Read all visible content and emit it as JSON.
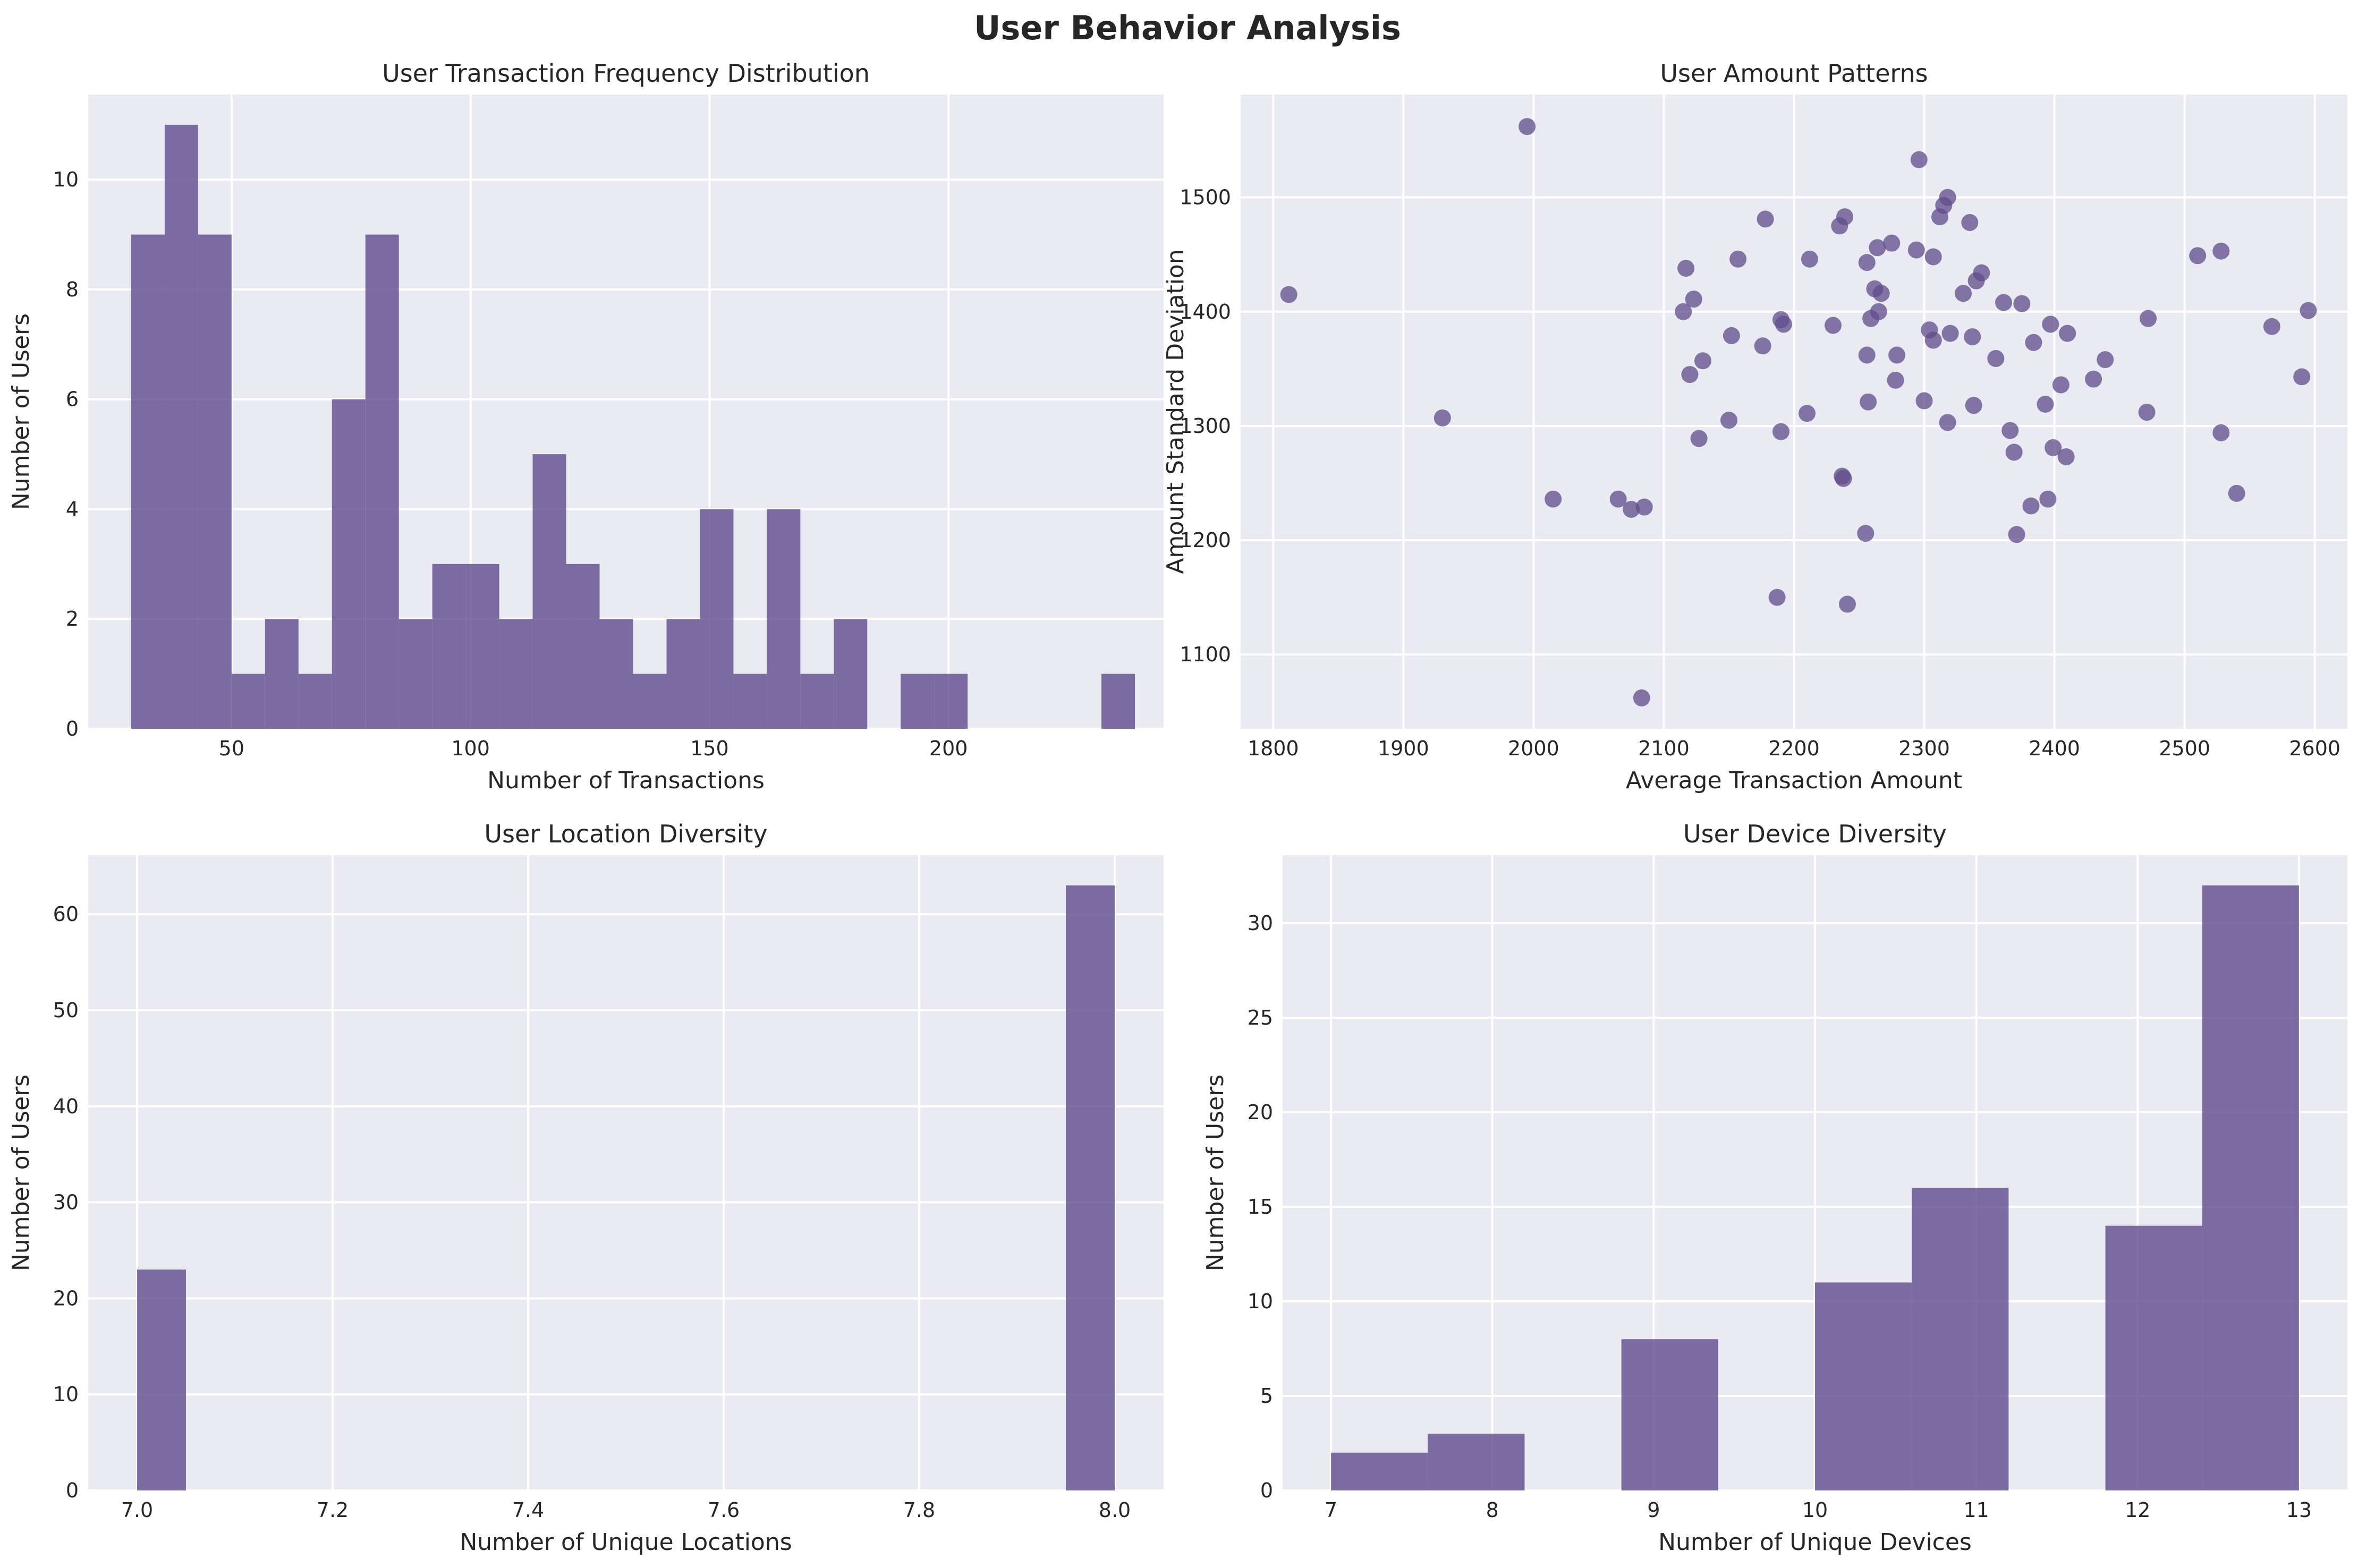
{
  "figure": {
    "title": "User Behavior Analysis",
    "bar_color": "#5f4b8b",
    "bar_opacity": 0.8,
    "plot_bg": "#eaeaf2"
  },
  "chart_data": [
    {
      "type": "bar",
      "title": "User Transaction Frequency Distribution",
      "xlabel": "Number of Transactions",
      "ylabel": "Number of Users",
      "xlim": [
        20,
        245
      ],
      "ylim": [
        0,
        11.55
      ],
      "xticks": [
        50,
        100,
        150,
        200
      ],
      "yticks": [
        0,
        2,
        4,
        6,
        8,
        10
      ],
      "bin_edges": [
        29,
        36,
        43,
        50,
        57,
        64,
        71,
        78,
        85,
        92,
        99,
        106,
        113,
        120,
        127,
        134,
        141,
        148,
        155,
        162,
        169,
        176,
        183,
        190,
        197,
        204,
        211,
        218,
        225,
        232,
        239
      ],
      "values": [
        9,
        11,
        9,
        1,
        2,
        1,
        6,
        9,
        2,
        3,
        3,
        2,
        5,
        3,
        2,
        1,
        2,
        4,
        1,
        4,
        1,
        2,
        0,
        1,
        1,
        0,
        0,
        0,
        0,
        1
      ]
    },
    {
      "type": "scatter",
      "title": "User Amount Patterns",
      "xlabel": "Average Transaction Amount",
      "ylabel": "Amount Standard Deviation",
      "xlim": [
        1775,
        2625
      ],
      "ylim": [
        1035,
        1590
      ],
      "xticks": [
        1800,
        1900,
        2000,
        2100,
        2200,
        2300,
        2400,
        2500,
        2600
      ],
      "yticks": [
        1100,
        1200,
        1300,
        1400,
        1500
      ],
      "points": [
        [
          1812,
          1415
        ],
        [
          1930,
          1307
        ],
        [
          1995,
          1562
        ],
        [
          2015,
          1236
        ],
        [
          2065,
          1236
        ],
        [
          2075,
          1227
        ],
        [
          2085,
          1229
        ],
        [
          2083,
          1062
        ],
        [
          2115,
          1400
        ],
        [
          2117,
          1438
        ],
        [
          2120,
          1345
        ],
        [
          2123,
          1411
        ],
        [
          2127,
          1289
        ],
        [
          2130,
          1357
        ],
        [
          2150,
          1305
        ],
        [
          2152,
          1379
        ],
        [
          2157,
          1446
        ],
        [
          2176,
          1370
        ],
        [
          2178,
          1481
        ],
        [
          2187,
          1150
        ],
        [
          2190,
          1295
        ],
        [
          2190,
          1393
        ],
        [
          2192,
          1389
        ],
        [
          2210,
          1311
        ],
        [
          2212,
          1446
        ],
        [
          2230,
          1388
        ],
        [
          2235,
          1475
        ],
        [
          2237,
          1256
        ],
        [
          2238,
          1254
        ],
        [
          2239,
          1483
        ],
        [
          2241,
          1144
        ],
        [
          2255,
          1206
        ],
        [
          2256,
          1443
        ],
        [
          2256,
          1362
        ],
        [
          2257,
          1321
        ],
        [
          2259,
          1394
        ],
        [
          2262,
          1420
        ],
        [
          2264,
          1456
        ],
        [
          2265,
          1400
        ],
        [
          2267,
          1416
        ],
        [
          2275,
          1460
        ],
        [
          2278,
          1340
        ],
        [
          2279,
          1362
        ],
        [
          2294,
          1454
        ],
        [
          2296,
          1533
        ],
        [
          2300,
          1322
        ],
        [
          2304,
          1384
        ],
        [
          2307,
          1448
        ],
        [
          2307,
          1375
        ],
        [
          2312,
          1483
        ],
        [
          2315,
          1493
        ],
        [
          2318,
          1500
        ],
        [
          2318,
          1303
        ],
        [
          2320,
          1381
        ],
        [
          2330,
          1416
        ],
        [
          2335,
          1478
        ],
        [
          2337,
          1378
        ],
        [
          2338,
          1318
        ],
        [
          2340,
          1427
        ],
        [
          2344,
          1434
        ],
        [
          2355,
          1359
        ],
        [
          2361,
          1408
        ],
        [
          2366,
          1296
        ],
        [
          2369,
          1277
        ],
        [
          2371,
          1205
        ],
        [
          2375,
          1407
        ],
        [
          2382,
          1230
        ],
        [
          2384,
          1373
        ],
        [
          2393,
          1319
        ],
        [
          2395,
          1236
        ],
        [
          2397,
          1389
        ],
        [
          2399,
          1281
        ],
        [
          2405,
          1336
        ],
        [
          2409,
          1273
        ],
        [
          2410,
          1381
        ],
        [
          2430,
          1341
        ],
        [
          2439,
          1358
        ],
        [
          2471,
          1312
        ],
        [
          2472,
          1394
        ],
        [
          2510,
          1449
        ],
        [
          2528,
          1294
        ],
        [
          2528,
          1453
        ],
        [
          2540,
          1241
        ],
        [
          2567,
          1387
        ],
        [
          2590,
          1343
        ],
        [
          2595,
          1401
        ]
      ]
    },
    {
      "type": "bar",
      "title": "User Location Diversity",
      "xlabel": "Number of Unique Locations",
      "ylabel": "Number of Users",
      "xlim": [
        6.95,
        8.05
      ],
      "ylim": [
        0,
        66.15
      ],
      "xticks": [
        7.0,
        7.2,
        7.4,
        7.6,
        7.8,
        8.0
      ],
      "yticks": [
        0,
        10,
        20,
        30,
        40,
        50,
        60
      ],
      "bin_edges": [
        7.0,
        7.05,
        7.95,
        8.0
      ],
      "values": [
        23,
        0,
        63
      ]
    },
    {
      "type": "bar",
      "title": "User Device Diversity",
      "xlabel": "Number of Unique Devices",
      "ylabel": "Number of Users",
      "xlim": [
        6.7,
        13.3
      ],
      "ylim": [
        0,
        33.6
      ],
      "xticks": [
        7,
        8,
        9,
        10,
        11,
        12,
        13
      ],
      "yticks": [
        0,
        5,
        10,
        15,
        20,
        25,
        30
      ],
      "bin_edges": [
        7.0,
        7.6,
        8.2,
        8.8,
        9.4,
        10.0,
        10.6,
        11.2,
        11.8,
        12.4,
        13.0
      ],
      "values": [
        2,
        3,
        0,
        8,
        0,
        11,
        16,
        0,
        14,
        32
      ]
    }
  ]
}
